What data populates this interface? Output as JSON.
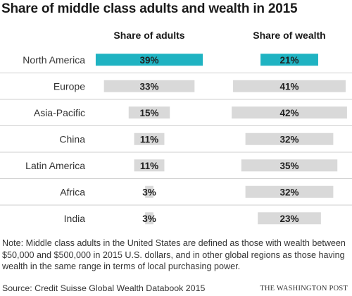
{
  "title": "Share of middle class adults and wealth in 2015",
  "note": "Note: Middle class adults in the United States are defined as those with wealth between $50,000 and $500,000 in 2015 U.S. dollars, and in other global regions as those having wealth in the same range in terms of local purchasing power.",
  "source": "Source: Credit Suisse Global Wealth Databook 2015",
  "brand": "THE WASHINGTON POST",
  "chart_data": {
    "type": "bar",
    "title": "Share of middle class adults and wealth in 2015",
    "categories": [
      "North America",
      "Europe",
      "Asia-Pacific",
      "China",
      "Latin America",
      "Africa",
      "India"
    ],
    "series": [
      {
        "name": "Share of adults",
        "values": [
          39,
          33,
          15,
          11,
          11,
          3,
          3
        ],
        "labels": [
          "39%",
          "33%",
          "15%",
          "11%",
          "11%",
          "3%",
          "3%"
        ]
      },
      {
        "name": "Share of wealth",
        "values": [
          21,
          41,
          42,
          32,
          35,
          32,
          23
        ],
        "labels": [
          "21%",
          "41%",
          "42%",
          "32%",
          "35%",
          "32%",
          "23%"
        ]
      }
    ],
    "highlight_category": "North America",
    "colors": {
      "highlight": "#1fb3c2",
      "bar": "#d9d9d9",
      "divider": "#cfcfcf"
    },
    "layout_style": "centered bars per column"
  }
}
